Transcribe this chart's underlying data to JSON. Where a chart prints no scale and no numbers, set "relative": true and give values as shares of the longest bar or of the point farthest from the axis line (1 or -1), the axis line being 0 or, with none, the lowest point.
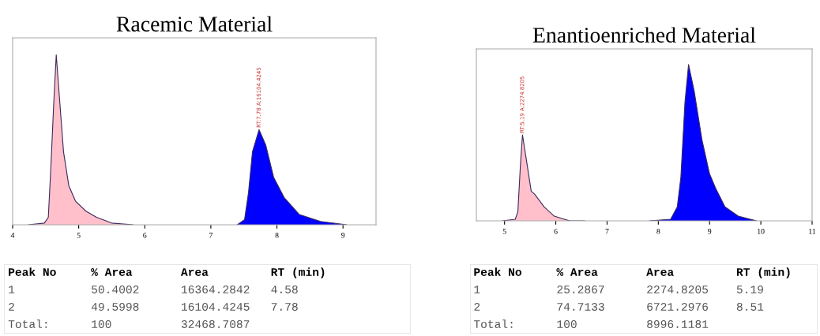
{
  "chart_data": [
    {
      "type": "area",
      "title": "Racemic Material",
      "relative": true,
      "xlim": [
        4,
        9.5
      ],
      "xticks": [
        4,
        5,
        6,
        7,
        8,
        9
      ],
      "grid": false,
      "legend": false,
      "series": [
        {
          "color": "#ffc0cb",
          "x": [
            4.24,
            4.48,
            4.54,
            4.58,
            4.62,
            4.66,
            4.71,
            4.77,
            4.85,
            4.95,
            5.11,
            5.27,
            5.5,
            5.82
          ],
          "values": [
            0,
            0.01,
            0.044,
            0.35,
            0.7,
            1.0,
            0.74,
            0.43,
            0.23,
            0.14,
            0.08,
            0.044,
            0.01,
            0
          ]
        },
        {
          "color": "#0000ff",
          "x": [
            7.4,
            7.51,
            7.57,
            7.63,
            7.73,
            7.83,
            7.95,
            8.11,
            8.34,
            8.66,
            9.05
          ],
          "values": [
            0,
            0.03,
            0.19,
            0.43,
            0.56,
            0.47,
            0.28,
            0.16,
            0.06,
            0.02,
            0
          ]
        }
      ],
      "annotations": [
        {
          "text": "RT:7.78 A:16104.4245",
          "x": 7.73,
          "y": 0.56
        }
      ]
    },
    {
      "type": "other",
      "annotations": [
        "Peak No     % Area       Area         RT (min)",
        "1           50.4002      16364.2842   4.58",
        "2           49.5998      16104.4245   7.78",
        "Total:      100          32468.7087"
      ]
    },
    {
      "type": "area",
      "title": "Enantioenriched Material",
      "relative": true,
      "xlim": [
        4.45,
        11
      ],
      "xticks": [
        5,
        6,
        7,
        8,
        9,
        10,
        11
      ],
      "grid": false,
      "legend": false,
      "series": [
        {
          "color": "#ffc0cb",
          "x": [
            4.96,
            5.21,
            5.26,
            5.31,
            5.35,
            5.44,
            5.52,
            5.59,
            5.77,
            5.97,
            6.27,
            6.56
          ],
          "values": [
            0,
            0.01,
            0.06,
            0.36,
            0.55,
            0.36,
            0.19,
            0.17,
            0.09,
            0.03,
            0,
            0
          ]
        },
        {
          "color": "#0000ff",
          "x": [
            7.83,
            8.24,
            8.37,
            8.44,
            8.52,
            8.59,
            8.7,
            8.85,
            9.0,
            9.13,
            9.3,
            9.56,
            9.91
          ],
          "values": [
            0,
            0.01,
            0.09,
            0.28,
            0.76,
            1.0,
            0.83,
            0.52,
            0.3,
            0.2,
            0.09,
            0.03,
            0
          ]
        }
      ],
      "annotations": [
        {
          "text": "RT:5.19 A:2274.8205",
          "x": 5.35,
          "y": 0.55
        }
      ]
    },
    {
      "type": "other",
      "annotations": [
        "Peak No     % Area       Area         RT (min)",
        "1           25.2867      2274.8205    5.19",
        "2           74.7133      6721.2976    8.51",
        "Total:      100          8996.1181"
      ]
    }
  ]
}
